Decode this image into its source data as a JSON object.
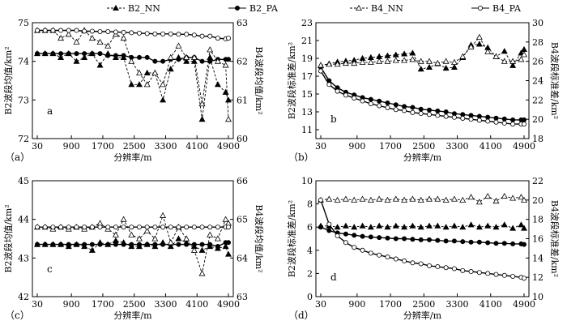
{
  "legend": {
    "items": [
      {
        "key": "B2_NN",
        "label": "B2_NN",
        "marker": "filled-triangle",
        "line": "dashed"
      },
      {
        "key": "B2_PA",
        "label": "B2_PA",
        "marker": "filled-circle",
        "line": "solid"
      },
      {
        "key": "B4_NN",
        "label": "B4_NN",
        "marker": "open-triangle",
        "line": "dashed"
      },
      {
        "key": "B4_PA",
        "label": "B4_PA",
        "marker": "open-circle",
        "line": "solid"
      }
    ]
  },
  "chart_data": [
    {
      "type": "line",
      "panel": "a",
      "caption": "（a）",
      "xlabel": "分辨率/m",
      "ylabel_left": "B2波段均值/km²",
      "ylabel_right": "B4波段均值/km²",
      "x_ticks": [
        30,
        900,
        1700,
        2500,
        3300,
        4100,
        4900
      ],
      "xlim": [
        30,
        4900
      ],
      "ylim_left": [
        72,
        75
      ],
      "yticks_left": [
        72,
        73,
        74,
        75
      ],
      "ylim_right": [
        60,
        63
      ],
      "yticks_right": [
        60,
        61,
        62,
        63
      ],
      "x": [
        30,
        230,
        430,
        630,
        830,
        1030,
        1230,
        1430,
        1630,
        1830,
        2030,
        2230,
        2430,
        2630,
        2830,
        3030,
        3230,
        3430,
        3630,
        3830,
        4030,
        4230,
        4430,
        4630,
        4830,
        4900
      ],
      "series": [
        {
          "name": "B2_NN",
          "axis": "left",
          "values": [
            74.2,
            74.2,
            74.2,
            74.1,
            74.2,
            74.0,
            74.1,
            74.2,
            73.9,
            74.2,
            74.1,
            74.1,
            73.4,
            73.4,
            73.7,
            73.7,
            73.0,
            73.8,
            74.1,
            74.0,
            74.0,
            72.5,
            74.1,
            73.4,
            73.2,
            73.0
          ]
        },
        {
          "name": "B2_PA",
          "axis": "left",
          "values": [
            74.2,
            74.2,
            74.2,
            74.2,
            74.2,
            74.2,
            74.2,
            74.2,
            74.2,
            74.15,
            74.15,
            74.15,
            74.1,
            74.1,
            74.1,
            74.0,
            74.0,
            74.05,
            74.05,
            74.1,
            74.1,
            74.0,
            74.0,
            74.05,
            74.05,
            74.05
          ]
        },
        {
          "name": "B4_NN",
          "axis": "right",
          "values": [
            62.8,
            62.8,
            62.8,
            62.6,
            62.7,
            62.5,
            62.8,
            62.6,
            62.5,
            62.4,
            62.7,
            62.6,
            62.0,
            61.7,
            61.4,
            61.7,
            61.4,
            62.1,
            62.4,
            62.1,
            62.1,
            60.9,
            62.3,
            62.0,
            61.9,
            60.5
          ]
        },
        {
          "name": "B4_PA",
          "axis": "right",
          "values": [
            62.8,
            62.8,
            62.8,
            62.8,
            62.8,
            62.8,
            62.78,
            62.78,
            62.77,
            62.77,
            62.76,
            62.75,
            62.74,
            62.73,
            62.72,
            62.71,
            62.71,
            62.71,
            62.7,
            62.7,
            62.68,
            62.65,
            62.65,
            62.6,
            62.58,
            62.6
          ]
        }
      ]
    },
    {
      "type": "line",
      "panel": "b",
      "caption": "（b）",
      "xlabel": "分辨率/m",
      "ylabel_left": "B2波段标准差/km²",
      "ylabel_right": "B4波段标准差/km²",
      "x_ticks": [
        30,
        900,
        1700,
        2500,
        3300,
        4100,
        4900
      ],
      "xlim": [
        30,
        4900
      ],
      "ylim_left": [
        10,
        23
      ],
      "yticks_left": [
        11,
        13,
        15,
        17,
        19,
        21,
        23
      ],
      "ylim_right": [
        18,
        30
      ],
      "yticks_right": [
        18,
        20,
        22,
        24,
        26,
        28,
        30
      ],
      "x": [
        30,
        230,
        430,
        630,
        830,
        1030,
        1230,
        1430,
        1630,
        1830,
        2030,
        2230,
        2430,
        2630,
        2830,
        3030,
        3230,
        3430,
        3630,
        3830,
        4030,
        4230,
        4430,
        4630,
        4830,
        4900
      ],
      "series": [
        {
          "name": "B2_NN",
          "axis": "left",
          "values": [
            18.2,
            18.4,
            18.6,
            18.7,
            18.8,
            19.0,
            19.1,
            19.2,
            19.3,
            19.4,
            19.5,
            19.6,
            17.8,
            18.0,
            18.4,
            17.9,
            18.0,
            19.1,
            20.5,
            20.6,
            20.2,
            19.2,
            19.8,
            18.2,
            19.6,
            20.0
          ]
        },
        {
          "name": "B2_PA",
          "axis": "left",
          "values": [
            18.0,
            16.5,
            15.7,
            15.2,
            14.9,
            14.6,
            14.4,
            14.2,
            14.0,
            13.8,
            13.6,
            13.5,
            13.3,
            13.2,
            13.1,
            13.0,
            12.8,
            12.7,
            12.6,
            12.5,
            12.4,
            12.3,
            12.2,
            12.1,
            12.1,
            12.1
          ]
        },
        {
          "name": "B4_NN",
          "axis": "right",
          "values": [
            25.6,
            25.7,
            25.7,
            25.8,
            25.8,
            25.9,
            25.9,
            26.0,
            26.0,
            26.1,
            26.1,
            26.2,
            26.0,
            26.0,
            25.8,
            26.0,
            25.9,
            26.5,
            27.5,
            28.5,
            27.0,
            26.5,
            26.0,
            26.0,
            26.2,
            26.7
          ]
        },
        {
          "name": "B4_PA",
          "axis": "right",
          "values": [
            25.0,
            23.6,
            22.9,
            22.5,
            22.2,
            21.9,
            21.6,
            21.4,
            21.2,
            21.0,
            20.9,
            20.7,
            20.6,
            20.5,
            20.4,
            20.3,
            20.2,
            20.1,
            20.0,
            19.9,
            19.8,
            19.7,
            19.6,
            19.5,
            19.5,
            19.5
          ]
        }
      ]
    },
    {
      "type": "line",
      "panel": "c",
      "caption": "（c）",
      "xlabel": "分辨率/m",
      "ylabel_left": "B2波段均值/km²",
      "ylabel_right": "B4波段均值/km²",
      "x_ticks": [
        30,
        900,
        1700,
        2500,
        3300,
        4100,
        4900
      ],
      "xlim": [
        30,
        4900
      ],
      "ylim_left": [
        42,
        45
      ],
      "yticks_left": [
        42,
        43,
        44,
        45
      ],
      "ylim_right": [
        63,
        66
      ],
      "yticks_right": [
        63,
        64,
        65,
        66
      ],
      "x": [
        30,
        230,
        430,
        630,
        830,
        1030,
        1230,
        1430,
        1630,
        1830,
        2030,
        2230,
        2430,
        2630,
        2830,
        3030,
        3230,
        3430,
        3630,
        3830,
        4030,
        4230,
        4430,
        4630,
        4830,
        4900
      ],
      "series": [
        {
          "name": "B2_NN",
          "axis": "left",
          "values": [
            43.35,
            43.35,
            43.35,
            43.35,
            43.3,
            43.35,
            43.3,
            43.2,
            43.4,
            43.35,
            43.45,
            43.4,
            43.3,
            43.3,
            43.35,
            43.3,
            43.4,
            43.3,
            43.5,
            43.4,
            43.3,
            43.2,
            43.3,
            43.25,
            43.3,
            43.1
          ]
        },
        {
          "name": "B2_PA",
          "axis": "left",
          "values": [
            43.35,
            43.35,
            43.35,
            43.35,
            43.35,
            43.35,
            43.35,
            43.35,
            43.35,
            43.35,
            43.35,
            43.35,
            43.35,
            43.35,
            43.35,
            43.35,
            43.35,
            43.35,
            43.35,
            43.35,
            43.35,
            43.35,
            43.35,
            43.3,
            43.4,
            43.4
          ]
        },
        {
          "name": "B4_NN",
          "axis": "right",
          "values": [
            64.8,
            64.8,
            64.75,
            64.8,
            64.75,
            64.8,
            64.75,
            64.8,
            64.9,
            64.75,
            64.6,
            65.0,
            64.6,
            64.5,
            64.7,
            64.5,
            65.1,
            64.4,
            64.8,
            64.5,
            64.2,
            63.6,
            64.6,
            64.5,
            65.0,
            64.9
          ]
        },
        {
          "name": "B4_PA",
          "axis": "right",
          "values": [
            64.8,
            64.8,
            64.8,
            64.8,
            64.8,
            64.8,
            64.8,
            64.8,
            64.8,
            64.8,
            64.8,
            64.8,
            64.8,
            64.8,
            64.8,
            64.8,
            64.8,
            64.8,
            64.8,
            64.8,
            64.8,
            64.8,
            64.8,
            64.8,
            64.8,
            64.8
          ]
        }
      ]
    },
    {
      "type": "line",
      "panel": "d",
      "caption": "（d）",
      "xlabel": "分辨率/m",
      "ylabel_left": "B2波段标准差/km²",
      "ylabel_right": "B4波段标准差/km²",
      "x_ticks": [
        30,
        900,
        1700,
        2500,
        3300,
        4100,
        4900
      ],
      "xlim": [
        30,
        4900
      ],
      "ylim_left": [
        0,
        10
      ],
      "yticks_left": [
        0,
        2,
        4,
        6,
        8,
        10
      ],
      "ylim_right": [
        10,
        22
      ],
      "yticks_right": [
        10,
        12,
        14,
        16,
        18,
        20,
        22
      ],
      "x": [
        30,
        230,
        430,
        630,
        830,
        1030,
        1230,
        1430,
        1630,
        1830,
        2030,
        2230,
        2430,
        2630,
        2830,
        3030,
        3230,
        3430,
        3630,
        3830,
        4030,
        4230,
        4430,
        4630,
        4830,
        4900
      ],
      "series": [
        {
          "name": "B2_NN",
          "axis": "left",
          "values": [
            6.1,
            6.1,
            6.0,
            6.1,
            6.0,
            6.1,
            6.0,
            6.1,
            6.0,
            6.1,
            6.0,
            6.1,
            6.0,
            6.1,
            6.1,
            6.0,
            6.1,
            6.0,
            6.2,
            6.0,
            6.1,
            6.0,
            6.2,
            5.9,
            6.2,
            5.9
          ]
        },
        {
          "name": "B2_PA",
          "axis": "left",
          "values": [
            6.0,
            5.7,
            5.5,
            5.4,
            5.3,
            5.2,
            5.15,
            5.1,
            5.05,
            5.0,
            5.0,
            4.95,
            4.9,
            4.9,
            4.85,
            4.8,
            4.8,
            4.75,
            4.7,
            4.7,
            4.65,
            4.6,
            4.6,
            4.55,
            4.55,
            4.5
          ]
        },
        {
          "name": "B4_NN",
          "axis": "right",
          "values": [
            20.0,
            20.1,
            20.0,
            20.1,
            20.0,
            20.1,
            20.0,
            20.1,
            20.0,
            20.1,
            20.0,
            20.1,
            20.0,
            20.1,
            20.1,
            20.0,
            20.1,
            20.0,
            20.3,
            19.8,
            20.4,
            19.9,
            20.4,
            20.2,
            20.3,
            20.0
          ]
        },
        {
          "name": "B4_PA",
          "axis": "right",
          "values": [
            20.0,
            17.5,
            16.3,
            15.6,
            15.1,
            14.8,
            14.5,
            14.3,
            14.1,
            13.9,
            13.7,
            13.5,
            13.4,
            13.2,
            13.1,
            13.0,
            12.9,
            12.7,
            12.6,
            12.5,
            12.4,
            12.3,
            12.2,
            12.1,
            12.0,
            11.9
          ]
        }
      ]
    }
  ]
}
